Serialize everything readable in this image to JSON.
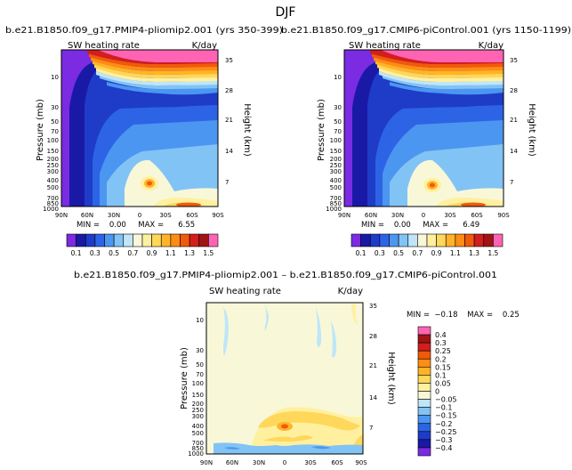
{
  "suptitle": "DJF",
  "chart_data": [
    {
      "type": "heatmap",
      "title": "b.e21.B1850.f09_g17.PMIP4-pliomip2.001 (yrs 350-399)",
      "variable": "SW heating rate",
      "units": "K/day",
      "ylabel": "Pressure (mb)",
      "y2label": "Height (km)",
      "x_ticks": [
        "90N",
        "60N",
        "30N",
        "0",
        "30S",
        "60S",
        "90S"
      ],
      "y_ticks": [
        "10",
        "30",
        "50",
        "70",
        "100",
        "150",
        "200",
        "250",
        "300",
        "400",
        "500",
        "700",
        "850",
        "1000"
      ],
      "y2_ticks": [
        "35",
        "28",
        "21",
        "14",
        "7"
      ],
      "min_max": "MIN =    0.00     MAX =      6.55",
      "colorbar": [
        "0.1",
        "0.3",
        "0.5",
        "0.7",
        "0.9",
        "1.1",
        "1.3",
        "1.5"
      ],
      "levels": [
        0.1,
        0.2,
        0.3,
        0.4,
        0.5,
        0.6,
        0.7,
        0.8,
        0.9,
        1.0,
        1.1,
        1.2,
        1.3,
        1.4,
        1.5
      ],
      "colors": [
        "#7b2be2",
        "#1919a6",
        "#1e3cc8",
        "#2d64e6",
        "#4b96f0",
        "#82c3f5",
        "#bfe6f8",
        "#f8f8d8",
        "#fff0a0",
        "#ffd75a",
        "#ffb428",
        "#ff8c14",
        "#f05a0a",
        "#d21e1e",
        "#a01414",
        "#ff64b4"
      ]
    },
    {
      "type": "heatmap",
      "title": "b.e21.B1850.f09_g17.CMIP6-piControl.001 (yrs 1150-1199)",
      "variable": "SW heating rate",
      "units": "K/day",
      "ylabel": "Pressure (mb)",
      "y2label": "Height (km)",
      "x_ticks": [
        "90N",
        "60N",
        "30N",
        "0",
        "30S",
        "60S",
        "90S"
      ],
      "y_ticks": [
        "10",
        "30",
        "50",
        "70",
        "100",
        "150",
        "200",
        "250",
        "300",
        "400",
        "500",
        "700",
        "850",
        "1000"
      ],
      "y2_ticks": [
        "35",
        "28",
        "21",
        "14",
        "7"
      ],
      "min_max": "MIN =    0.00     MAX =      6.49",
      "colorbar": [
        "0.1",
        "0.3",
        "0.5",
        "0.7",
        "0.9",
        "1.1",
        "1.3",
        "1.5"
      ],
      "levels": [
        0.1,
        0.2,
        0.3,
        0.4,
        0.5,
        0.6,
        0.7,
        0.8,
        0.9,
        1.0,
        1.1,
        1.2,
        1.3,
        1.4,
        1.5
      ],
      "colors": [
        "#7b2be2",
        "#1919a6",
        "#1e3cc8",
        "#2d64e6",
        "#4b96f0",
        "#82c3f5",
        "#bfe6f8",
        "#f8f8d8",
        "#fff0a0",
        "#ffd75a",
        "#ffb428",
        "#ff8c14",
        "#f05a0a",
        "#d21e1e",
        "#a01414",
        "#ff64b4"
      ]
    },
    {
      "type": "heatmap",
      "title": "b.e21.B1850.f09_g17.PMIP4-pliomip2.001 – b.e21.B1850.f09_g17.CMIP6-piControl.001",
      "variable": "SW heating rate",
      "units": "K/day",
      "ylabel": "Pressure (mb)",
      "y2label": "Height (km)",
      "x_ticks": [
        "90N",
        "60N",
        "30N",
        "0",
        "30S",
        "60S",
        "90S"
      ],
      "y_ticks": [
        "10",
        "30",
        "50",
        "70",
        "100",
        "150",
        "200",
        "250",
        "300",
        "400",
        "500",
        "700",
        "850",
        "1000"
      ],
      "y2_ticks": [
        "35",
        "28",
        "21",
        "14",
        "7"
      ],
      "min_max": "MIN =  −0.18    MAX =    0.25",
      "colorbar": [
        "0.4",
        "0.3",
        "0.25",
        "0.2",
        "0.15",
        "0.1",
        "0.05",
        "0",
        "−0.05",
        "−0.1",
        "−0.15",
        "−0.2",
        "−0.25",
        "−0.3",
        "−0.4"
      ],
      "levels": [
        0.4,
        0.3,
        0.25,
        0.2,
        0.15,
        0.1,
        0.05,
        0,
        -0.05,
        -0.1,
        -0.15,
        -0.2,
        -0.25,
        -0.3,
        -0.4
      ],
      "colors": [
        "#ff64b4",
        "#a01414",
        "#d21e1e",
        "#f05a0a",
        "#ff8c14",
        "#ffb428",
        "#ffd75a",
        "#fff0a0",
        "#f8f8d8",
        "#bfe6f8",
        "#82c3f5",
        "#4b96f0",
        "#2d64e6",
        "#1e3cc8",
        "#1919a6",
        "#7b2be2"
      ]
    }
  ]
}
